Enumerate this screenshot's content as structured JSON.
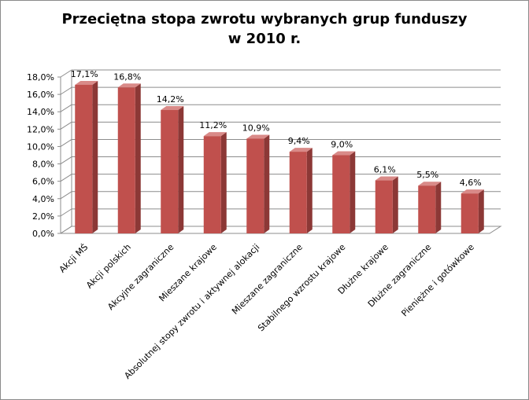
{
  "chart_data": {
    "type": "bar",
    "title_line1": "Przeciętna stopa zwrotu wybranych grup funduszy",
    "title_line2": "w 2010 r.",
    "categories": [
      "Akcji MŚ",
      "Akcji polskich",
      "Akcyjne zagraniczne",
      "Mieszane krajowe",
      "Absolutnej stopy zwrotu i aktywnej alokacji",
      "Mieszane zagraniczne",
      "Stabilnego wzrostu krajowe",
      "Dłużne krajowe",
      "Dłużne zagraniczne",
      "Pieniężne i gotówkowe"
    ],
    "values": [
      17.1,
      16.8,
      14.2,
      11.2,
      10.9,
      9.4,
      9.0,
      6.1,
      5.5,
      4.6
    ],
    "data_labels": [
      "17,1%",
      "16,8%",
      "14,2%",
      "11,2%",
      "10,9%",
      "9,4%",
      "9,0%",
      "6,1%",
      "5,5%",
      "4,6%"
    ],
    "y_ticks": [
      "0,0%",
      "2,0%",
      "4,0%",
      "6,0%",
      "8,0%",
      "10,0%",
      "12,0%",
      "14,0%",
      "16,0%",
      "18,0%"
    ],
    "ylim": [
      0,
      18
    ],
    "grid": true,
    "bar_color": "#c0504d",
    "bar_side_color": "#8c3836",
    "bar_top_color": "#d98a88"
  }
}
